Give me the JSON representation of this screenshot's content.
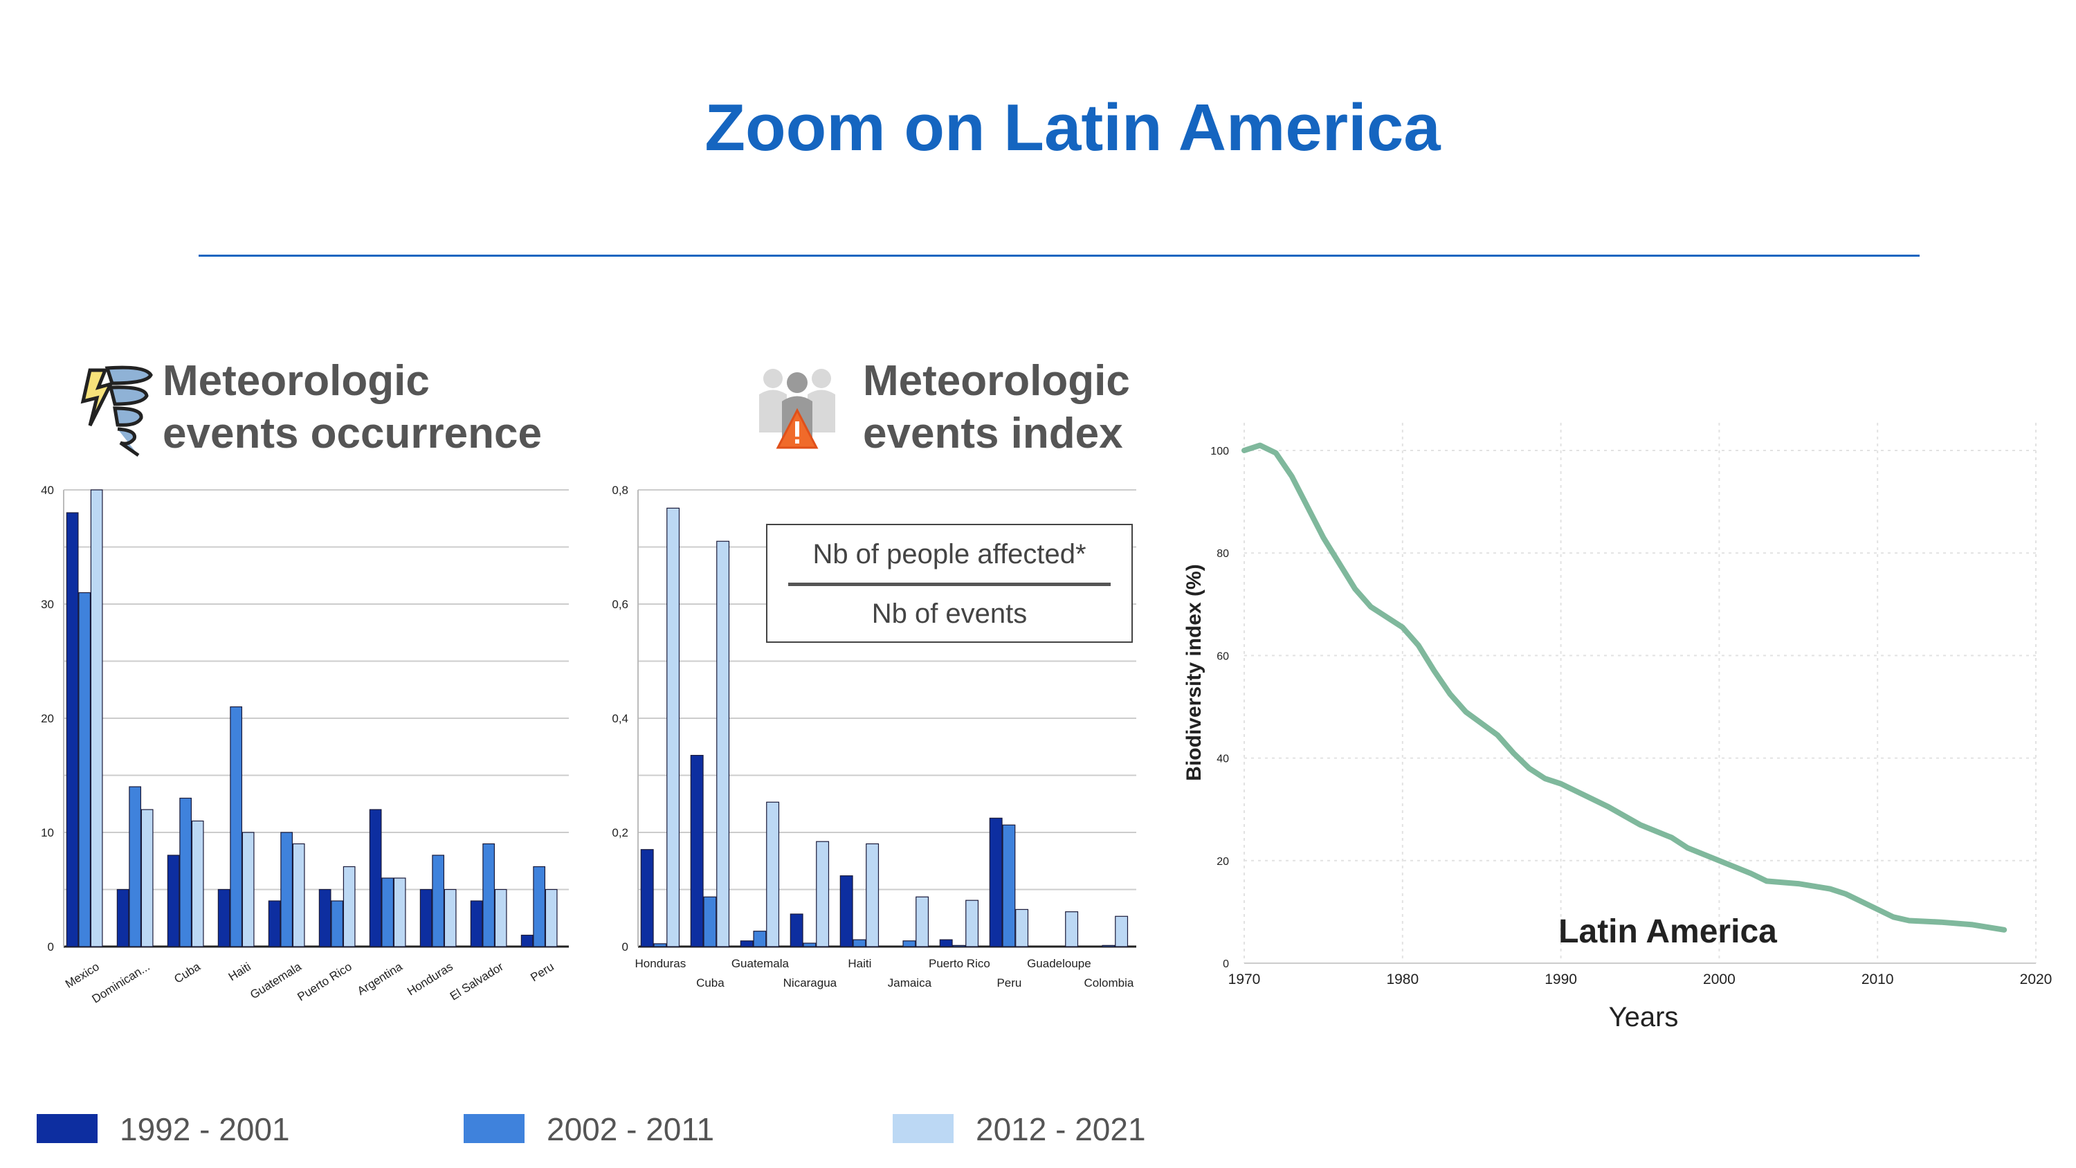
{
  "title": "Zoom on Latin America",
  "panels": {
    "occurrence_title_line1": "Meteorologic",
    "occurrence_title_line2": "events occurrence",
    "index_title_line1": "Meteorologic",
    "index_title_line2": "events index",
    "ratio_numerator": "Nb of people affected*",
    "ratio_denominator": "Nb of events",
    "occurrence_icon": "tornado-icon",
    "index_icon": "affected-people-warning-icon"
  },
  "legend": [
    {
      "label": "1992 - 2001",
      "color": "#0d2ea0"
    },
    {
      "label": "2002 - 2011",
      "color": "#3f82dc"
    },
    {
      "label": "2012 - 2021",
      "color": "#bcd8f4"
    }
  ],
  "chart_data": [
    {
      "type": "bar",
      "categories": [
        "Mexico",
        "Dominican...",
        "Cuba",
        "Haiti",
        "Guatemala",
        "Puerto Rico",
        "Argentina",
        "Honduras",
        "El Salvador",
        "Peru"
      ],
      "series": [
        {
          "name": "1992 - 2001",
          "values": [
            38,
            5,
            8,
            5,
            4,
            5,
            12,
            5,
            4,
            1
          ]
        },
        {
          "name": "2002 - 2011",
          "values": [
            31,
            14,
            13,
            21,
            10,
            4,
            6,
            8,
            9,
            7
          ]
        },
        {
          "name": "2012 - 2021",
          "values": [
            40,
            12,
            11,
            10,
            9,
            7,
            6,
            5,
            5,
            5
          ]
        }
      ],
      "title": "Meteorologic events occurrence",
      "ylim": [
        0,
        40
      ],
      "yticks": [
        "0",
        "10",
        "20",
        "30",
        "40"
      ],
      "grid": true
    },
    {
      "type": "bar",
      "categories": [
        "Honduras",
        "Cuba",
        "Guatemala",
        "Nicaragua",
        "Haiti",
        "Jamaica",
        "Puerto Rico",
        "Peru",
        "Guadeloupe",
        "Colombia"
      ],
      "series": [
        {
          "name": "1992 - 2001",
          "values": [
            0.17,
            0.335,
            0.01,
            0.057,
            0.124,
            0,
            0.012,
            0.225,
            0,
            0
          ]
        },
        {
          "name": "2002 - 2011",
          "values": [
            0.005,
            0.087,
            0.027,
            0.006,
            0.012,
            0.01,
            0.002,
            0.213,
            0,
            0.002
          ]
        },
        {
          "name": "2012 - 2021",
          "values": [
            0.768,
            0.71,
            0.253,
            0.184,
            0.18,
            0.087,
            0.081,
            0.065,
            0.061,
            0.053
          ]
        }
      ],
      "title": "Meteorologic events index",
      "ylim": [
        0,
        0.8
      ],
      "yticks": [
        "0",
        "0,2",
        "0,4",
        "0,6",
        "0,8"
      ],
      "grid": true
    },
    {
      "type": "line",
      "x": [
        1970,
        1971,
        1972,
        1973,
        1975,
        1977,
        1978,
        1980,
        1981,
        1982,
        1983,
        1984,
        1986,
        1987,
        1988,
        1989,
        1990,
        1991,
        1993,
        1995,
        1997,
        1998,
        2000,
        2002,
        2003,
        2005,
        2007,
        2008,
        2010,
        2011,
        2012,
        2014,
        2016,
        2018
      ],
      "series": [
        {
          "name": "Latin America",
          "values": [
            100,
            101,
            99.5,
            95,
            83,
            73,
            69.5,
            65.5,
            62,
            57,
            52.5,
            49,
            44.5,
            41,
            38,
            36,
            35,
            33.5,
            30.5,
            27,
            24.5,
            22.5,
            20,
            17.5,
            16,
            15.5,
            14.5,
            13.5,
            10.5,
            9,
            8.3,
            8,
            7.5,
            6.5
          ]
        }
      ],
      "xlabel": "Years",
      "ylabel": "Biodiversity index (%)",
      "xlim": [
        1970,
        2020
      ],
      "ylim": [
        0,
        100
      ],
      "xticks": [
        "1970",
        "1980",
        "1990",
        "2000",
        "2010",
        "2020"
      ],
      "yticks": [
        "0",
        "20",
        "40",
        "60",
        "80",
        "100"
      ],
      "annotation": "Latin America",
      "line_color": "#7fb89c",
      "grid": true
    }
  ]
}
